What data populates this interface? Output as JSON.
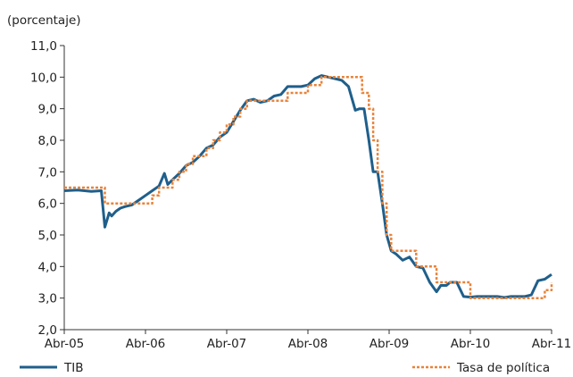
{
  "chart_data": {
    "type": "line",
    "ylabel": "(porcentaje)",
    "ylim": [
      2.0,
      11.0
    ],
    "y_ticks": [
      "2,0",
      "3,0",
      "4,0",
      "5,0",
      "6,0",
      "7,0",
      "8,0",
      "9,0",
      "10,0",
      "11,0"
    ],
    "xlim": [
      "2005-04",
      "2011-04"
    ],
    "x_ticks": [
      "Abr-05",
      "Abr-06",
      "Abr-07",
      "Abr-08",
      "Abr-09",
      "Abr-10",
      "Abr-11"
    ],
    "grid": false,
    "legend_position": "bottom",
    "colors": {
      "TIB": "#1f5f8b",
      "Tasa de política": "#e8833a"
    },
    "series": [
      {
        "name": "TIB",
        "style": "solid",
        "x": [
          "2005-04-01",
          "2005-06-01",
          "2005-08-01",
          "2005-09-15",
          "2005-10-01",
          "2005-10-20",
          "2005-11-01",
          "2005-11-20",
          "2005-12-10",
          "2006-01-01",
          "2006-02-01",
          "2006-03-01",
          "2006-04-01",
          "2006-05-01",
          "2006-06-01",
          "2006-06-25",
          "2006-07-10",
          "2006-08-01",
          "2006-09-01",
          "2006-10-01",
          "2006-11-01",
          "2006-12-01",
          "2007-01-01",
          "2007-02-01",
          "2007-03-01",
          "2007-04-01",
          "2007-05-01",
          "2007-06-01",
          "2007-07-01",
          "2007-08-01",
          "2007-09-01",
          "2007-10-01",
          "2007-11-01",
          "2007-12-01",
          "2008-01-01",
          "2008-02-01",
          "2008-03-01",
          "2008-04-01",
          "2008-05-01",
          "2008-06-01",
          "2008-07-01",
          "2008-08-01",
          "2008-09-01",
          "2008-10-01",
          "2008-11-01",
          "2008-11-20",
          "2008-12-10",
          "2009-01-01",
          "2009-01-20",
          "2009-02-10",
          "2009-03-01",
          "2009-03-20",
          "2009-04-10",
          "2009-05-01",
          "2009-06-01",
          "2009-07-01",
          "2009-08-01",
          "2009-09-01",
          "2009-10-01",
          "2009-11-01",
          "2009-11-20",
          "2009-12-15",
          "2010-01-01",
          "2010-02-01",
          "2010-03-01",
          "2010-04-01",
          "2010-05-01",
          "2010-06-01",
          "2010-07-01",
          "2010-08-01",
          "2010-09-01",
          "2010-10-01",
          "2010-11-01",
          "2010-12-01",
          "2011-01-01",
          "2011-02-01",
          "2011-03-01",
          "2011-04-01"
        ],
        "values": [
          6.4,
          6.42,
          6.38,
          6.4,
          5.25,
          5.7,
          5.6,
          5.75,
          5.85,
          5.9,
          5.95,
          6.1,
          6.25,
          6.4,
          6.55,
          6.95,
          6.6,
          6.75,
          6.95,
          7.2,
          7.3,
          7.5,
          7.75,
          7.85,
          8.1,
          8.25,
          8.6,
          8.95,
          9.25,
          9.3,
          9.2,
          9.25,
          9.4,
          9.45,
          9.7,
          9.7,
          9.7,
          9.75,
          9.95,
          10.05,
          10.0,
          9.95,
          9.9,
          9.7,
          8.95,
          9.0,
          9.0,
          8.0,
          7.0,
          7.0,
          6.0,
          5.0,
          4.5,
          4.4,
          4.2,
          4.3,
          4.0,
          3.95,
          3.5,
          3.2,
          3.4,
          3.4,
          3.5,
          3.5,
          3.05,
          3.03,
          3.05,
          3.05,
          3.05,
          3.05,
          3.02,
          3.05,
          3.05,
          3.05,
          3.1,
          3.55,
          3.6,
          3.75
        ]
      },
      {
        "name": "Tasa de política",
        "style": "dotted",
        "x": [
          "2005-04-01",
          "2005-10-01",
          "2006-04-01",
          "2006-05-01",
          "2006-06-01",
          "2006-08-01",
          "2006-09-01",
          "2006-10-01",
          "2006-11-01",
          "2006-12-01",
          "2007-01-01",
          "2007-02-01",
          "2007-03-01",
          "2007-04-01",
          "2007-05-01",
          "2007-06-01",
          "2007-07-01",
          "2007-08-01",
          "2007-09-01",
          "2008-01-01",
          "2008-04-01",
          "2008-05-01",
          "2008-06-01",
          "2008-11-01",
          "2008-12-01",
          "2009-01-01",
          "2009-01-20",
          "2009-02-10",
          "2009-03-01",
          "2009-03-20",
          "2009-04-10",
          "2009-05-01",
          "2009-06-01",
          "2009-07-01",
          "2009-08-01",
          "2009-09-01",
          "2009-10-01",
          "2009-11-01",
          "2010-01-01",
          "2010-02-01",
          "2010-03-01",
          "2010-04-01",
          "2010-05-01",
          "2011-02-01",
          "2011-03-01",
          "2011-04-01"
        ],
        "values": [
          6.5,
          6.0,
          6.0,
          6.25,
          6.5,
          6.75,
          7.0,
          7.25,
          7.5,
          7.5,
          7.75,
          8.0,
          8.25,
          8.5,
          8.75,
          9.0,
          9.25,
          9.25,
          9.25,
          9.5,
          9.75,
          9.75,
          10.0,
          10.0,
          9.5,
          9.0,
          8.0,
          7.0,
          6.0,
          5.0,
          4.5,
          4.5,
          4.5,
          4.5,
          4.0,
          4.0,
          4.0,
          3.5,
          3.5,
          3.5,
          3.5,
          3.0,
          3.0,
          3.0,
          3.25,
          3.5
        ]
      }
    ]
  }
}
